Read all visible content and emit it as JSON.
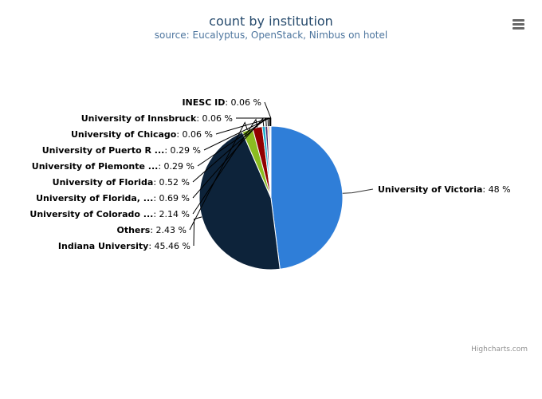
{
  "chart_data": {
    "type": "pie",
    "title": "count by institution",
    "subtitle": "source: Eucalyptus, OpenStack, Nimbus on hotel",
    "unit": "%",
    "slices": [
      {
        "name": "University of Victoria",
        "value": 48,
        "label": "48 %",
        "color": "#2f7ed8"
      },
      {
        "name": "Indiana University",
        "value": 45.46,
        "label": "45.46 %",
        "color": "#0d233a"
      },
      {
        "name": "Others",
        "value": 2.43,
        "label": "2.43 %",
        "color": "#8bbc21"
      },
      {
        "name": "University of Colorado ...",
        "value": 2.14,
        "label": "2.14 %",
        "color": "#910000"
      },
      {
        "name": "University of Florida, ...",
        "value": 0.69,
        "label": "0.69 %",
        "color": "#1aadce"
      },
      {
        "name": "University of Florida",
        "value": 0.52,
        "label": "0.52 %",
        "color": "#492970"
      },
      {
        "name": "University of Piemonte ...",
        "value": 0.29,
        "label": "0.29 %",
        "color": "#f28f43"
      },
      {
        "name": "University of Puerto R ...",
        "value": 0.29,
        "label": "0.29 %",
        "color": "#77a1e5"
      },
      {
        "name": "University of Chicago",
        "value": 0.06,
        "label": "0.06 %",
        "color": "#c42525"
      },
      {
        "name": "University of Innsbruck",
        "value": 0.06,
        "label": "0.06 %",
        "color": "#a6c96a"
      },
      {
        "name": "INESC ID",
        "value": 0.06,
        "label": "0.06 %",
        "color": "#2f7ed8"
      }
    ]
  },
  "credits": "Highcharts.com",
  "menu_icon": "hamburger-menu-icon"
}
